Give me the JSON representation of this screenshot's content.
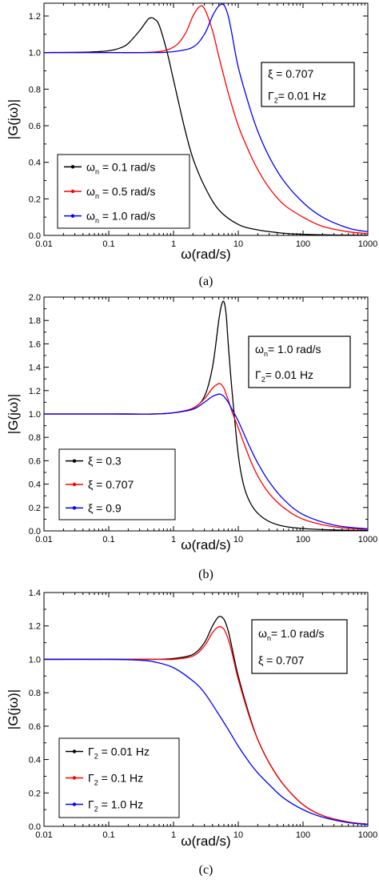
{
  "chart_data": [
    {
      "type": "line",
      "caption": "(a)",
      "xlabel": "ω(rad/s)",
      "ylabel": "|G(jω)|",
      "xscale": "log",
      "xlim": [
        0.01,
        1000
      ],
      "ylim": [
        0,
        1.27
      ],
      "xticks": [
        "0.01",
        "0.1",
        "1",
        "10",
        "100",
        "1000"
      ],
      "yticks": [
        "0.0",
        "0.2",
        "0.4",
        "0.6",
        "0.8",
        "1.0",
        "1.2"
      ],
      "legend_position": "bottom-left",
      "legend": [
        {
          "sym": "ω",
          "sub": "n",
          "rest": " = 0.1 rad/s"
        },
        {
          "sym": "ω",
          "sub": "n",
          "rest": " = 0.5 rad/s"
        },
        {
          "sym": "ω",
          "sub": "n",
          "rest": " = 1.0 rad/s"
        }
      ],
      "annotation_box": [
        {
          "sym": "ξ",
          "sub": "",
          "rest": " = 0.707"
        },
        {
          "sym": "Γ",
          "sub": "2",
          "rest": "=  0.01 Hz"
        }
      ],
      "series": [
        {
          "color": "#000000",
          "x": [
            0.01,
            0.05,
            0.1,
            0.15,
            0.2,
            0.3,
            0.4,
            0.45,
            0.5,
            0.6,
            0.8,
            1,
            1.5,
            2,
            3,
            5,
            10,
            20,
            50,
            100,
            300,
            1000
          ],
          "y": [
            1.0,
            1.003,
            1.01,
            1.025,
            1.05,
            1.12,
            1.18,
            1.19,
            1.185,
            1.15,
            1.0,
            0.85,
            0.58,
            0.42,
            0.27,
            0.14,
            0.06,
            0.03,
            0.012,
            0.006,
            0.002,
            0.001
          ]
        },
        {
          "color": "#ff0000",
          "x": [
            0.01,
            0.1,
            0.5,
            1,
            1.5,
            2,
            2.5,
            3,
            4,
            5,
            7,
            10,
            15,
            20,
            30,
            50,
            100,
            200,
            500,
            1000
          ],
          "y": [
            1.0,
            1.0,
            1.003,
            1.03,
            1.1,
            1.2,
            1.25,
            1.24,
            1.12,
            0.98,
            0.78,
            0.6,
            0.45,
            0.36,
            0.26,
            0.17,
            0.1,
            0.05,
            0.02,
            0.01
          ]
        },
        {
          "color": "#0000ff",
          "x": [
            0.01,
            0.1,
            0.5,
            1,
            2,
            3,
            4,
            5,
            6,
            7,
            8,
            10,
            15,
            20,
            30,
            50,
            100,
            200,
            500,
            1000
          ],
          "y": [
            1.0,
            1.0,
            1.0,
            1.005,
            1.03,
            1.1,
            1.2,
            1.255,
            1.26,
            1.2,
            1.1,
            0.92,
            0.7,
            0.57,
            0.43,
            0.3,
            0.18,
            0.1,
            0.04,
            0.02
          ]
        }
      ]
    },
    {
      "type": "line",
      "caption": "(b)",
      "xlabel": "ω(rad/s)",
      "ylabel": "|G(jω)|",
      "xscale": "log",
      "xlim": [
        0.01,
        1000
      ],
      "ylim": [
        0,
        2.0
      ],
      "xticks": [
        "0.01",
        "0.1",
        "1",
        "10",
        "100",
        "1000"
      ],
      "yticks": [
        "0.0",
        "0.2",
        "0.4",
        "0.6",
        "0.8",
        "1.0",
        "1.2",
        "1.4",
        "1.6",
        "1.8",
        "2.0"
      ],
      "legend_position": "bottom-left",
      "legend": [
        {
          "sym": "ξ",
          "sub": "",
          "rest": " = 0.3"
        },
        {
          "sym": "ξ",
          "sub": "",
          "rest": " = 0.707"
        },
        {
          "sym": "ξ",
          "sub": "",
          "rest": " = 0.9"
        }
      ],
      "annotation_box": [
        {
          "sym": "ω",
          "sub": "n",
          "rest": "= 1.0    rad/s"
        },
        {
          "sym": "Γ",
          "sub": "2",
          "rest": "= 0.01 Hz"
        }
      ],
      "series": [
        {
          "color": "#000000",
          "x": [
            0.01,
            0.1,
            0.5,
            1,
            2,
            3,
            4,
            5,
            5.5,
            6,
            6.5,
            7,
            8,
            10,
            12,
            15,
            20,
            30,
            50,
            100,
            300,
            1000
          ],
          "y": [
            1.0,
            1.0,
            1.0,
            1.01,
            1.05,
            1.15,
            1.4,
            1.8,
            1.93,
            1.96,
            1.85,
            1.6,
            1.2,
            0.65,
            0.4,
            0.25,
            0.15,
            0.08,
            0.04,
            0.02,
            0.008,
            0.003
          ]
        },
        {
          "color": "#ff0000",
          "x": [
            0.01,
            0.1,
            0.5,
            1,
            2,
            3,
            4,
            5,
            5.5,
            6,
            7,
            8,
            10,
            15,
            20,
            30,
            50,
            100,
            300,
            1000
          ],
          "y": [
            1.0,
            1.0,
            1.0,
            1.01,
            1.05,
            1.13,
            1.22,
            1.26,
            1.25,
            1.22,
            1.12,
            1.02,
            0.88,
            0.62,
            0.47,
            0.32,
            0.2,
            0.1,
            0.035,
            0.012
          ]
        },
        {
          "color": "#0000ff",
          "x": [
            0.01,
            0.1,
            0.5,
            1,
            2,
            3,
            4,
            5,
            5.5,
            6,
            7,
            8,
            10,
            15,
            20,
            30,
            50,
            100,
            300,
            1000
          ],
          "y": [
            1.0,
            1.0,
            1.0,
            1.01,
            1.04,
            1.1,
            1.15,
            1.17,
            1.165,
            1.15,
            1.1,
            1.04,
            0.94,
            0.72,
            0.58,
            0.42,
            0.27,
            0.14,
            0.05,
            0.017
          ]
        }
      ]
    },
    {
      "type": "line",
      "caption": "(c)",
      "xlabel": "ω(rad/s)",
      "ylabel": "|G(jω)|",
      "xscale": "log",
      "xlim": [
        0.01,
        1000
      ],
      "ylim": [
        0,
        1.4
      ],
      "xticks": [
        "0.01",
        "0.1",
        "1",
        "10",
        "100",
        "1000"
      ],
      "yticks": [
        "0.0",
        "0.2",
        "0.4",
        "0.6",
        "0.8",
        "1.0",
        "1.2",
        "1.4"
      ],
      "legend_position": "bottom-left",
      "legend": [
        {
          "sym": "Γ",
          "sub": "2",
          "rest": " = 0.01 Hz"
        },
        {
          "sym": "Γ",
          "sub": "2",
          "rest": " = 0.1    Hz"
        },
        {
          "sym": "Γ",
          "sub": "2",
          "rest": " = 1.0    Hz"
        }
      ],
      "annotation_box": [
        {
          "sym": "ω",
          "sub": "n",
          "rest": "= 1.0  rad/s"
        },
        {
          "sym": "ξ",
          "sub": "",
          "rest": "  = 0.707"
        }
      ],
      "series": [
        {
          "color": "#000000",
          "x": [
            0.01,
            0.1,
            0.5,
            1,
            2,
            3,
            4,
            5,
            6,
            7,
            8,
            10,
            15,
            20,
            30,
            50,
            100,
            200,
            500,
            1000
          ],
          "y": [
            1.0,
            1.0,
            1.0,
            1.005,
            1.03,
            1.1,
            1.2,
            1.255,
            1.24,
            1.17,
            1.07,
            0.9,
            0.66,
            0.52,
            0.38,
            0.25,
            0.13,
            0.065,
            0.026,
            0.013
          ]
        },
        {
          "color": "#ff0000",
          "x": [
            0.01,
            0.1,
            0.5,
            1,
            2,
            3,
            4,
            5,
            6,
            7,
            8,
            10,
            15,
            20,
            30,
            50,
            100,
            200,
            500,
            1000
          ],
          "y": [
            1.0,
            1.0,
            1.0,
            1.0,
            1.02,
            1.08,
            1.16,
            1.195,
            1.18,
            1.12,
            1.04,
            0.88,
            0.65,
            0.52,
            0.38,
            0.25,
            0.13,
            0.065,
            0.026,
            0.013
          ]
        },
        {
          "color": "#0000ff",
          "x": [
            0.01,
            0.1,
            0.3,
            0.5,
            1,
            2,
            3,
            5,
            7,
            10,
            15,
            20,
            30,
            50,
            100,
            200,
            500,
            1000
          ],
          "y": [
            1.0,
            1.0,
            0.995,
            0.985,
            0.95,
            0.87,
            0.8,
            0.67,
            0.58,
            0.48,
            0.38,
            0.32,
            0.25,
            0.17,
            0.1,
            0.055,
            0.022,
            0.011
          ]
        }
      ]
    }
  ]
}
